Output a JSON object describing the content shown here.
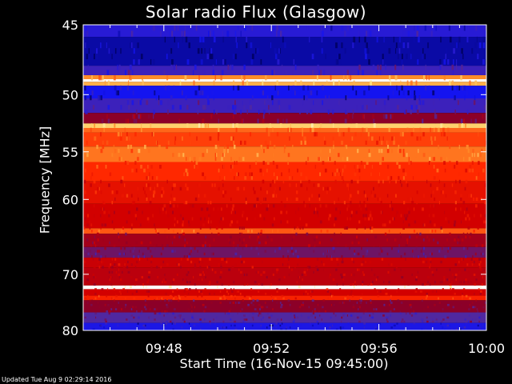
{
  "chart_data": {
    "type": "heatmap",
    "title": "Solar radio Flux (Glasgow)",
    "xlabel": "Start Time (16-Nov-15 09:45:00)",
    "ylabel": "Frequency [MHz]",
    "x_ticks": [
      "09:48",
      "09:52",
      "09:56",
      "10:00"
    ],
    "x_tick_minutes_after_start": [
      3,
      7,
      11,
      15
    ],
    "x_range_minutes": [
      0,
      15
    ],
    "y_ticks": [
      45,
      50,
      55,
      60,
      70,
      80
    ],
    "y_range_mhz": [
      45,
      80
    ],
    "y_scale": "reciprocal",
    "colormap": "blue-red-yellow-white",
    "bands_mhz": [
      {
        "from": 45.0,
        "to": 45.8,
        "level": 0.15
      },
      {
        "from": 45.8,
        "to": 47.8,
        "level": 0.05
      },
      {
        "from": 47.8,
        "to": 48.5,
        "level": 0.2
      },
      {
        "from": 48.5,
        "to": 48.8,
        "level": 0.75
      },
      {
        "from": 48.8,
        "to": 49.0,
        "level": 1.0
      },
      {
        "from": 49.0,
        "to": 49.3,
        "level": 0.8
      },
      {
        "from": 49.3,
        "to": 50.3,
        "level": 0.1
      },
      {
        "from": 50.3,
        "to": 51.5,
        "level": 0.2
      },
      {
        "from": 51.5,
        "to": 52.4,
        "level": 0.35
      },
      {
        "from": 52.4,
        "to": 52.8,
        "level": 0.85
      },
      {
        "from": 52.8,
        "to": 53.2,
        "level": 0.7
      },
      {
        "from": 53.2,
        "to": 54.5,
        "level": 0.65
      },
      {
        "from": 54.5,
        "to": 56.0,
        "level": 0.72
      },
      {
        "from": 56.0,
        "to": 58.0,
        "level": 0.62
      },
      {
        "from": 58.0,
        "to": 60.5,
        "level": 0.55
      },
      {
        "from": 60.5,
        "to": 63.5,
        "level": 0.5
      },
      {
        "from": 63.5,
        "to": 64.2,
        "level": 0.68
      },
      {
        "from": 64.2,
        "to": 66.0,
        "level": 0.4
      },
      {
        "from": 66.0,
        "to": 67.5,
        "level": 0.3
      },
      {
        "from": 67.5,
        "to": 69.0,
        "level": 0.48
      },
      {
        "from": 69.0,
        "to": 71.8,
        "level": 0.45
      },
      {
        "from": 71.8,
        "to": 72.4,
        "level": 1.0
      },
      {
        "from": 72.4,
        "to": 73.5,
        "level": 0.5
      },
      {
        "from": 73.5,
        "to": 74.3,
        "level": 0.6
      },
      {
        "from": 74.3,
        "to": 76.5,
        "level": 0.35
      },
      {
        "from": 76.5,
        "to": 78.5,
        "level": 0.25
      },
      {
        "from": 78.5,
        "to": 80.0,
        "level": 0.12
      }
    ]
  },
  "footer": "Updated Tue Aug  9 02:29:14 2016"
}
